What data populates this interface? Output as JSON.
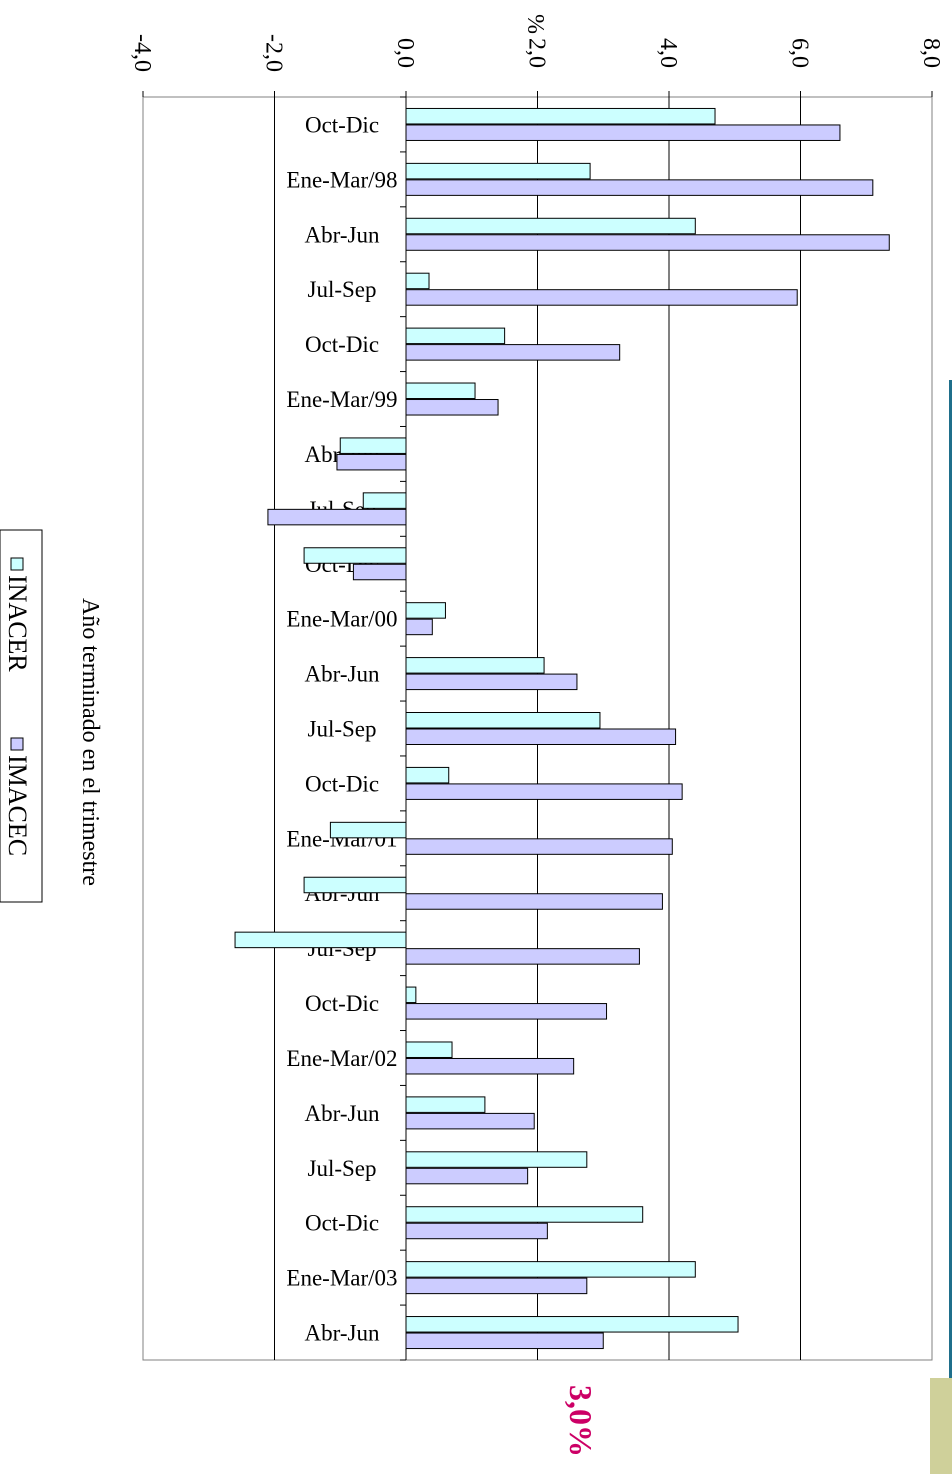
{
  "chart_data": {
    "type": "bar",
    "orientation": "horizontal",
    "xlabel": "%",
    "ylabel": "Año terminado en el trimestre",
    "xlim": [
      -4,
      8
    ],
    "x_ticks": [
      "-4,0",
      "-2,0",
      "0,0",
      "2,0",
      "4,0",
      "6,0",
      "8,0"
    ],
    "grid": true,
    "legend": "bottom",
    "categories": [
      "Oct-Dic",
      "Ene-Mar/98",
      "Abr-Jun",
      "Jul-Sep",
      "Oct-Dic",
      "Ene-Mar/99",
      "Abr-Jun",
      "Jul-Sep",
      "Oct-Dic",
      "Ene-Mar/00",
      "Abr-Jun",
      "Jul-Sep",
      "Oct-Dic",
      "Ene-Mar/01",
      "Abr-Jun",
      "Jul-Sep",
      "Oct-Dic",
      "Ene-Mar/02",
      "Abr-Jun",
      "Jul-Sep",
      "Oct-Dic",
      "Ene-Mar/03",
      "Abr-Jun"
    ],
    "series": [
      {
        "name": "INACER",
        "color": "#ccffff",
        "values": [
          4.7,
          2.8,
          4.4,
          0.35,
          1.5,
          1.05,
          -1.0,
          -0.65,
          -1.55,
          0.6,
          2.1,
          2.95,
          0.65,
          -1.15,
          -1.55,
          -2.6,
          0.15,
          0.7,
          1.2,
          2.75,
          3.6,
          4.4,
          5.05
        ]
      },
      {
        "name": "IMACEC",
        "color": "#ccccff",
        "values": [
          6.6,
          7.1,
          7.35,
          5.95,
          3.25,
          1.4,
          -1.05,
          -2.1,
          -0.8,
          0.4,
          2.6,
          4.1,
          4.2,
          4.05,
          3.9,
          3.55,
          3.05,
          2.55,
          1.95,
          1.85,
          2.15,
          2.75,
          3.0
        ]
      }
    ],
    "annotations": [
      {
        "text": "3,0%",
        "color": "#cc0066"
      }
    ]
  }
}
